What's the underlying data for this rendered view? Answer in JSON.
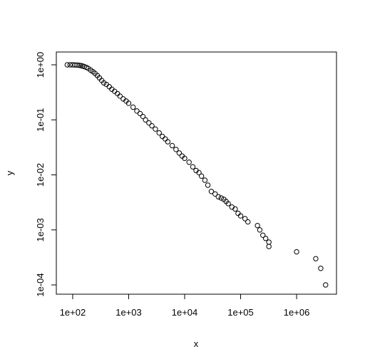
{
  "chart_data": {
    "type": "scatter",
    "x_label": "x",
    "y_label": "y",
    "log_x": true,
    "log_y": true,
    "xlim": [
      51,
      5160000
    ],
    "ylim": [
      6.79e-05,
      1.71
    ],
    "xticks": [
      {
        "value": 100,
        "label": "1e+02"
      },
      {
        "value": 1000,
        "label": "1e+03"
      },
      {
        "value": 10000,
        "label": "1e+04"
      },
      {
        "value": 100000,
        "label": "1e+05"
      },
      {
        "value": 1000000,
        "label": "1e+06"
      }
    ],
    "yticks": [
      {
        "value": 0.0001,
        "label": "1e-04"
      },
      {
        "value": 0.001,
        "label": "1e-03"
      },
      {
        "value": 0.01,
        "label": "1e-02"
      },
      {
        "value": 0.1,
        "label": "1e-01"
      },
      {
        "value": 1,
        "label": "1e+00"
      }
    ],
    "color": "#000000",
    "x": [
      80,
      90,
      100,
      110,
      120,
      130,
      140,
      150,
      160,
      175,
      190,
      210,
      230,
      250,
      275,
      300,
      330,
      360,
      400,
      450,
      500,
      560,
      630,
      700,
      800,
      900,
      1000,
      1200,
      1400,
      1600,
      1800,
      2000,
      2300,
      2600,
      3000,
      3500,
      4000,
      4500,
      5000,
      6000,
      7000,
      8000,
      9000,
      10000,
      12000,
      14000,
      16000,
      18000,
      20000,
      23000,
      26000,
      30000,
      35000,
      40000,
      45000,
      50000,
      55000,
      60000,
      70000,
      80000,
      90000,
      100000,
      120000,
      135000,
      200000,
      220000,
      250000,
      280000,
      320000,
      320000,
      1000000,
      2200000,
      2700000,
      3300000
    ],
    "y": [
      1,
      1,
      1,
      0.995,
      0.99,
      0.98,
      0.97,
      0.95,
      0.93,
      0.9,
      0.86,
      0.8,
      0.75,
      0.7,
      0.64,
      0.58,
      0.52,
      0.47,
      0.44,
      0.4,
      0.36,
      0.33,
      0.3,
      0.27,
      0.24,
      0.22,
      0.2,
      0.17,
      0.145,
      0.13,
      0.115,
      0.1,
      0.088,
      0.078,
      0.068,
      0.058,
      0.05,
      0.045,
      0.04,
      0.034,
      0.029,
      0.025,
      0.022,
      0.02,
      0.017,
      0.014,
      0.012,
      0.011,
      0.0095,
      0.008,
      0.0065,
      0.005,
      0.0045,
      0.004,
      0.0038,
      0.0036,
      0.0033,
      0.003,
      0.0026,
      0.0024,
      0.002,
      0.0018,
      0.0016,
      0.0014,
      0.0012,
      0.001,
      0.0008,
      0.0007,
      0.0006,
      0.0005,
      0.0004,
      0.0003,
      0.0002,
      0.0001
    ]
  }
}
